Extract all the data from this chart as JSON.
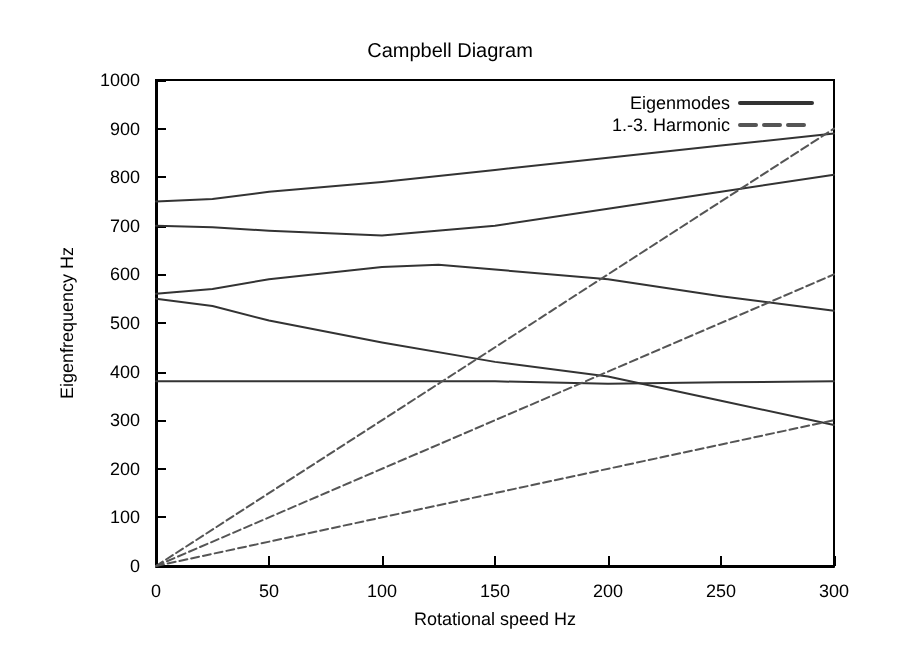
{
  "chart_data": {
    "type": "line",
    "title": "Campbell Diagram",
    "xlabel": "Rotational speed Hz",
    "ylabel": "Eigenfrequency Hz",
    "xlim": [
      0,
      300
    ],
    "xticks": [
      0,
      50,
      100,
      150,
      200,
      250,
      300
    ],
    "ylim": [
      0,
      1000
    ],
    "yticks": [
      0,
      100,
      200,
      300,
      400,
      500,
      600,
      700,
      800,
      900,
      1000
    ],
    "grid": false,
    "legend": "top right",
    "marker": "none",
    "series": [
      {
        "name": "Eigenmodes",
        "color": "#333333",
        "line_style": "solid",
        "x": [
          0,
          25,
          50,
          100,
          150,
          200,
          250,
          300
        ],
        "values": [
          750,
          755,
          770,
          790,
          815,
          840,
          865,
          890
        ]
      },
      {
        "color": "#333333",
        "line_style": "solid",
        "x": [
          0,
          25,
          50,
          100,
          150,
          200,
          250,
          300
        ],
        "values": [
          700,
          697,
          690,
          680,
          700,
          735,
          770,
          805
        ]
      },
      {
        "color": "#333333",
        "line_style": "solid",
        "x": [
          0,
          25,
          50,
          100,
          125,
          150,
          200,
          250,
          300
        ],
        "values": [
          560,
          570,
          590,
          615,
          620,
          610,
          590,
          555,
          525
        ]
      },
      {
        "color": "#333333",
        "line_style": "solid",
        "x": [
          0,
          25,
          50,
          100,
          150,
          200,
          250,
          300
        ],
        "values": [
          550,
          535,
          505,
          460,
          420,
          390,
          340,
          290
        ]
      },
      {
        "color": "#333333",
        "line_style": "solid",
        "x": [
          0,
          100,
          150,
          200,
          250,
          300
        ],
        "values": [
          380,
          380,
          380,
          375,
          378,
          380
        ]
      },
      {
        "name": "1.-3. Harmonic",
        "color": "#555555",
        "line_style": "dashed",
        "x": [
          0,
          300
        ],
        "values": [
          0,
          900
        ]
      },
      {
        "color": "#555555",
        "line_style": "dashed",
        "x": [
          0,
          300
        ],
        "values": [
          0,
          600
        ]
      },
      {
        "color": "#555555",
        "line_style": "dashed",
        "x": [
          0,
          300
        ],
        "values": [
          0,
          300
        ]
      }
    ]
  }
}
